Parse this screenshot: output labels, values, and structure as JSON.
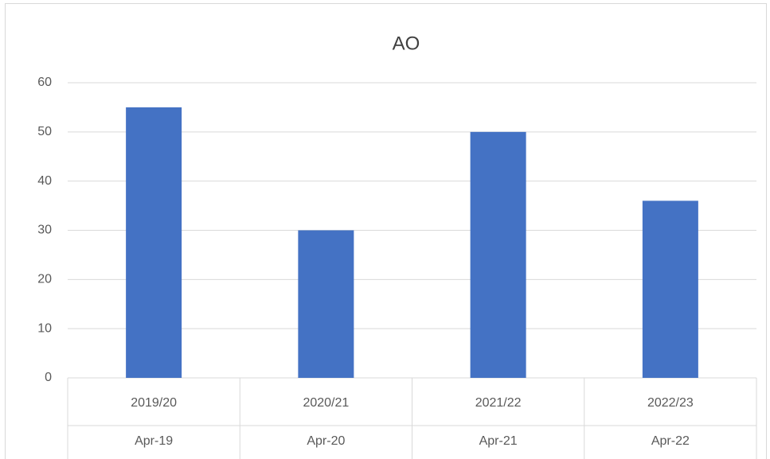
{
  "chart_data": {
    "type": "bar",
    "title": "AO",
    "categories": [
      "2019/20",
      "2020/21",
      "2021/22",
      "2022/23"
    ],
    "sub_categories": [
      "Apr-19",
      "Apr-20",
      "Apr-21",
      "Apr-22"
    ],
    "values": [
      55,
      30,
      50,
      36
    ],
    "color": "#4472c4",
    "ylim": [
      0,
      60
    ],
    "yticks": [
      0,
      10,
      20,
      30,
      40,
      50,
      60
    ],
    "grid": true
  }
}
